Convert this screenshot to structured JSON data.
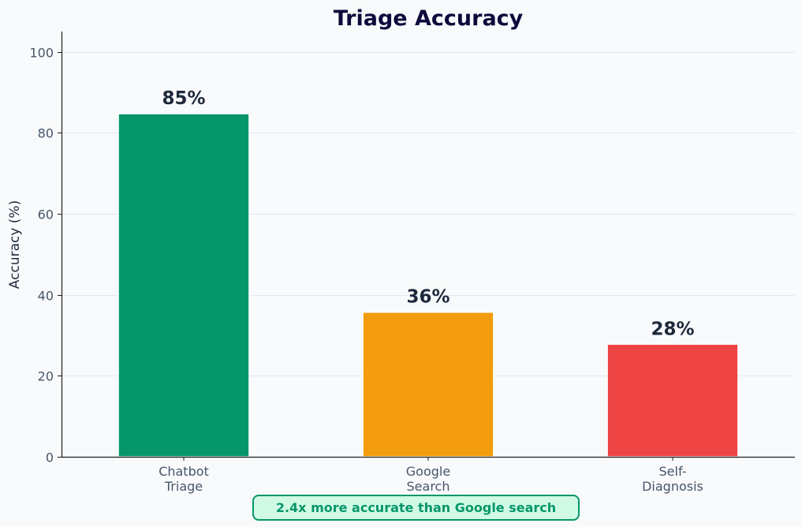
{
  "chart_data": {
    "type": "bar",
    "title": "Triage Accuracy",
    "xlabel": "",
    "ylabel": "Accuracy (%)",
    "ylim": [
      0,
      105
    ],
    "yticks": [
      0,
      20,
      40,
      60,
      80,
      100
    ],
    "grid": true,
    "categories": [
      [
        "Chatbot",
        "Triage"
      ],
      [
        "Google",
        "Search"
      ],
      [
        "Self-",
        "Diagnosis"
      ]
    ],
    "values": [
      84.7,
      35.7,
      27.8
    ],
    "data_labels": [
      "85%",
      "36%",
      "28%"
    ],
    "colors": [
      "#059669",
      "#f39c0e",
      "#ef4444"
    ],
    "annotation": {
      "text": "2.4x more accurate than Google search",
      "text_color": "#059669",
      "box_fill": "#d1fae5",
      "box_stroke": "#059669"
    }
  }
}
